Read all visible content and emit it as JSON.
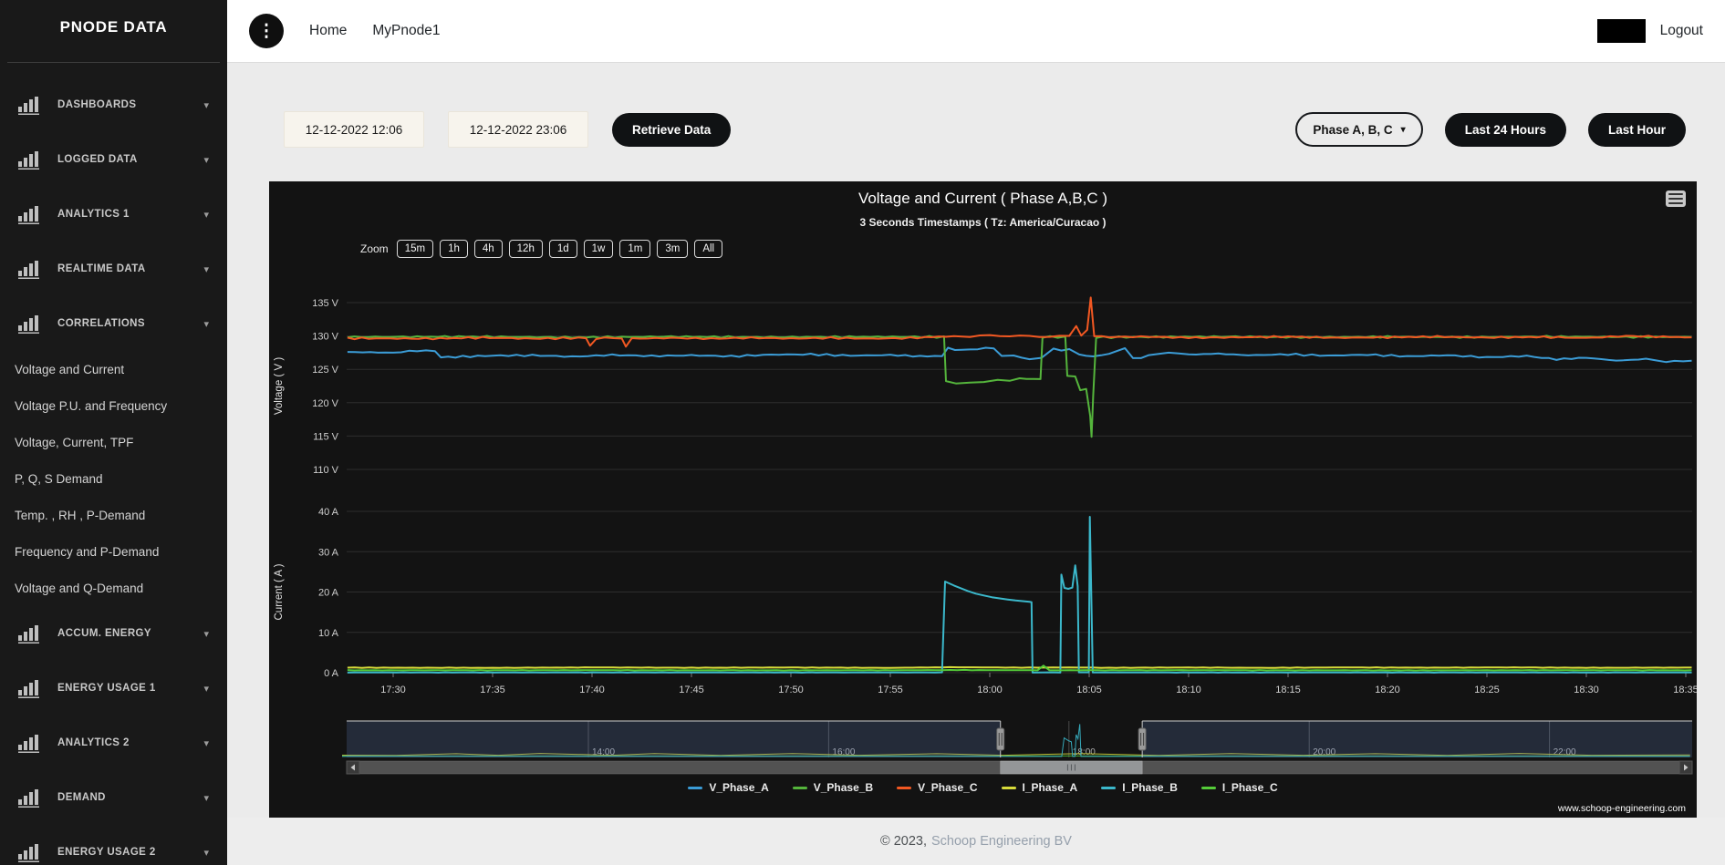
{
  "sidebar": {
    "title": "PNODE DATA",
    "groups": [
      {
        "label": "DASHBOARDS"
      },
      {
        "label": "LOGGED DATA"
      },
      {
        "label": "ANALYTICS 1"
      },
      {
        "label": "REALTIME DATA"
      },
      {
        "label": "CORRELATIONS",
        "expanded": true,
        "children": [
          "Voltage and Current",
          "Voltage P.U. and Frequency",
          "Voltage, Current, TPF",
          "P, Q, S Demand",
          "Temp. , RH , P-Demand",
          "Frequency and P-Demand",
          "Voltage and Q-Demand"
        ]
      },
      {
        "label": "ACCUM. ENERGY"
      },
      {
        "label": "ENERGY USAGE 1"
      },
      {
        "label": "ANALYTICS 2"
      },
      {
        "label": "DEMAND"
      },
      {
        "label": "ENERGY USAGE 2"
      }
    ]
  },
  "navbar": {
    "links": [
      {
        "label": "Home"
      },
      {
        "label": "MyPnode1"
      }
    ],
    "logout": "Logout"
  },
  "toolbar": {
    "date_from": "12-12-2022 12:06",
    "date_to": "12-12-2022 23:06",
    "retrieve": "Retrieve Data",
    "phase": "Phase A, B, C",
    "last24": "Last 24 Hours",
    "lasthour": "Last Hour"
  },
  "footer": {
    "copyright": "© 2023,",
    "company": "Schoop Engineering BV"
  },
  "chart_data": {
    "type": "line",
    "title": "Voltage and Current ( Phase A,B,C )",
    "subtitle": "3 Seconds Timestamps ( Tz: America/Curacao )",
    "watermark": "www.schoop-engineering.com",
    "zoom_label": "Zoom",
    "zoom_buttons": [
      "15m",
      "1h",
      "4h",
      "12h",
      "1d",
      "1w",
      "1m",
      "3m",
      "All"
    ],
    "x_ticks": [
      "17:30",
      "17:35",
      "17:40",
      "17:45",
      "17:50",
      "17:55",
      "18:00",
      "18:05",
      "18:10",
      "18:15",
      "18:20",
      "18:25",
      "18:30",
      "18:35"
    ],
    "panes": [
      {
        "name": "voltage",
        "axis_title": "Voltage ( V )",
        "unit": "V",
        "ticks": [
          135,
          130,
          125,
          120,
          115,
          110
        ],
        "y_min": 110,
        "y_max": 135,
        "grid": true
      },
      {
        "name": "current",
        "axis_title": "Current ( A )",
        "unit": "A",
        "ticks": [
          40,
          30,
          20,
          10,
          0
        ],
        "y_min": 0,
        "y_max": 40,
        "grid": true
      }
    ],
    "series": [
      {
        "name": "V_Phase_A",
        "pane": "voltage",
        "color": "#3B9CD6",
        "points": [
          [
            -2.3,
            127.6
          ],
          [
            0,
            127.5
          ],
          [
            1.2,
            127.8
          ],
          [
            2.1,
            127.7
          ],
          [
            2.4,
            126.8
          ],
          [
            3.5,
            126.9
          ],
          [
            5,
            127.05
          ],
          [
            7,
            127.1
          ],
          [
            9,
            126.9
          ],
          [
            11,
            127.15
          ],
          [
            13,
            127.0
          ],
          [
            15,
            127.1
          ],
          [
            17,
            126.95
          ],
          [
            19,
            127.2
          ],
          [
            21,
            127.25
          ],
          [
            23,
            127.05
          ],
          [
            25,
            127.15
          ],
          [
            26.5,
            126.95
          ],
          [
            27.6,
            127.0
          ],
          [
            27.9,
            128.1
          ],
          [
            28.6,
            127.9
          ],
          [
            29.4,
            128.05
          ],
          [
            30.2,
            128.25
          ],
          [
            30.6,
            126.9
          ],
          [
            31.2,
            127.05
          ],
          [
            32.0,
            126.5
          ],
          [
            32.6,
            126.65
          ],
          [
            33.2,
            128.0
          ],
          [
            34.0,
            127.9
          ],
          [
            34.5,
            127.15
          ],
          [
            35.2,
            126.95
          ],
          [
            36.0,
            127.3
          ],
          [
            36.8,
            128.2
          ],
          [
            37.2,
            126.6
          ],
          [
            38,
            127.0
          ],
          [
            39,
            127.55
          ],
          [
            40,
            127.2
          ],
          [
            41.5,
            127.35
          ],
          [
            43,
            127.1
          ],
          [
            45,
            127.25
          ],
          [
            47,
            127.05
          ],
          [
            49,
            127.2
          ],
          [
            51,
            126.95
          ],
          [
            53,
            127.1
          ],
          [
            55,
            126.8
          ],
          [
            57,
            127.0
          ],
          [
            58.5,
            126.5
          ],
          [
            60,
            126.75
          ],
          [
            61.5,
            126.3
          ],
          [
            63,
            126.55
          ],
          [
            64,
            126.15
          ],
          [
            65.3,
            126.3
          ]
        ]
      },
      {
        "name": "V_Phase_B",
        "pane": "voltage",
        "color": "#55B53C",
        "points": [
          [
            -2.3,
            129.85
          ],
          [
            4,
            129.9
          ],
          [
            9,
            129.8
          ],
          [
            14,
            129.9
          ],
          [
            19,
            129.82
          ],
          [
            24,
            129.88
          ],
          [
            27.7,
            129.85
          ],
          [
            27.8,
            123.2
          ],
          [
            28.3,
            122.75
          ],
          [
            29.0,
            122.95
          ],
          [
            29.7,
            123.05
          ],
          [
            30.4,
            123.3
          ],
          [
            31.0,
            123.2
          ],
          [
            31.5,
            123.65
          ],
          [
            32.2,
            123.55
          ],
          [
            32.55,
            123.5
          ],
          [
            32.65,
            129.85
          ],
          [
            33.8,
            129.85
          ],
          [
            33.9,
            124.0
          ],
          [
            34.3,
            123.9
          ],
          [
            34.55,
            121.9
          ],
          [
            34.85,
            122.1
          ],
          [
            35.05,
            118.0
          ],
          [
            35.12,
            114.8
          ],
          [
            35.2,
            121.0
          ],
          [
            35.35,
            129.8
          ],
          [
            38,
            129.85
          ],
          [
            42,
            129.9
          ],
          [
            46,
            129.8
          ],
          [
            50,
            129.88
          ],
          [
            54,
            129.82
          ],
          [
            58,
            129.9
          ],
          [
            62,
            129.85
          ],
          [
            65.3,
            129.85
          ]
        ]
      },
      {
        "name": "V_Phase_C",
        "pane": "voltage",
        "color": "#F25822",
        "points": [
          [
            -2.3,
            129.65
          ],
          [
            2,
            129.6
          ],
          [
            4.5,
            129.75
          ],
          [
            7,
            129.6
          ],
          [
            9.7,
            129.7
          ],
          [
            9.9,
            128.45
          ],
          [
            10.2,
            129.65
          ],
          [
            11.5,
            129.7
          ],
          [
            11.7,
            128.35
          ],
          [
            12.0,
            129.6
          ],
          [
            14,
            129.7
          ],
          [
            16,
            129.6
          ],
          [
            18,
            129.72
          ],
          [
            20,
            129.62
          ],
          [
            22,
            129.7
          ],
          [
            24,
            129.6
          ],
          [
            26,
            129.68
          ],
          [
            27.8,
            129.95
          ],
          [
            29,
            129.9
          ],
          [
            30,
            130.05
          ],
          [
            31,
            129.95
          ],
          [
            32,
            130.05
          ],
          [
            33,
            129.9
          ],
          [
            34.0,
            129.98
          ],
          [
            34.35,
            131.55
          ],
          [
            34.6,
            130.15
          ],
          [
            34.9,
            130.9
          ],
          [
            35.08,
            135.8
          ],
          [
            35.25,
            130.0
          ],
          [
            36,
            129.85
          ],
          [
            38,
            129.9
          ],
          [
            40,
            129.72
          ],
          [
            42.5,
            129.8
          ],
          [
            45,
            129.9
          ],
          [
            47.5,
            129.72
          ],
          [
            50,
            129.8
          ],
          [
            52.5,
            129.9
          ],
          [
            55,
            129.75
          ],
          [
            57.5,
            129.85
          ],
          [
            60,
            129.7
          ],
          [
            62,
            130.0
          ],
          [
            63.5,
            129.9
          ],
          [
            65.3,
            129.8
          ]
        ]
      },
      {
        "name": "I_Phase_A",
        "pane": "current",
        "color": "#D7DB3A",
        "points": [
          [
            -2.3,
            1.25
          ],
          [
            5,
            1.2
          ],
          [
            10,
            1.3
          ],
          [
            15,
            1.22
          ],
          [
            20,
            1.28
          ],
          [
            25,
            1.2
          ],
          [
            28,
            1.35
          ],
          [
            30,
            1.3
          ],
          [
            32,
            1.25
          ],
          [
            34,
            1.3
          ],
          [
            36,
            1.22
          ],
          [
            40,
            1.28
          ],
          [
            44,
            1.2
          ],
          [
            48,
            1.3
          ],
          [
            52,
            1.24
          ],
          [
            56,
            1.3
          ],
          [
            60,
            1.22
          ],
          [
            65.3,
            1.26
          ]
        ]
      },
      {
        "name": "I_Phase_B",
        "pane": "current",
        "color": "#3BB8CB",
        "points": [
          [
            -2.3,
            0.05
          ],
          [
            27.6,
            0.05
          ],
          [
            27.75,
            22.6
          ],
          [
            28.2,
            21.6
          ],
          [
            28.9,
            20.2
          ],
          [
            29.7,
            19.1
          ],
          [
            30.5,
            18.4
          ],
          [
            31.3,
            17.9
          ],
          [
            32.0,
            17.6
          ],
          [
            32.1,
            17.5
          ],
          [
            32.15,
            0.05
          ],
          [
            33.55,
            0.05
          ],
          [
            33.6,
            24.3
          ],
          [
            33.75,
            21.0
          ],
          [
            33.95,
            20.8
          ],
          [
            34.15,
            21.1
          ],
          [
            34.3,
            26.6
          ],
          [
            34.42,
            21.4
          ],
          [
            34.48,
            0.05
          ],
          [
            34.98,
            0.05
          ],
          [
            35.03,
            38.6
          ],
          [
            35.18,
            0.05
          ],
          [
            65.3,
            0.05
          ]
        ]
      },
      {
        "name": "I_Phase_C",
        "pane": "current",
        "color": "#55CC39",
        "points": [
          [
            -2.3,
            0.6
          ],
          [
            10,
            0.62
          ],
          [
            20,
            0.58
          ],
          [
            28,
            0.65
          ],
          [
            32.4,
            0.6
          ],
          [
            32.7,
            1.7
          ],
          [
            33.0,
            0.6
          ],
          [
            40,
            0.62
          ],
          [
            50,
            0.58
          ],
          [
            60,
            0.62
          ],
          [
            65.3,
            0.6
          ]
        ]
      }
    ],
    "x_range_minutes": [
      -2.3,
      65.3
    ],
    "navigator": {
      "labels": [
        {
          "text": "14:00",
          "hour": 14
        },
        {
          "text": "16:00",
          "hour": 16
        },
        {
          "text": "18:00",
          "hour": 18
        },
        {
          "text": "20:00",
          "hour": 20
        },
        {
          "text": "22:00",
          "hour": 22
        }
      ],
      "hour_range": [
        11.95,
        23.17
      ],
      "selected_hours": [
        17.43,
        18.61
      ],
      "series": [
        {
          "name": "I_Phase_A",
          "color": "#b9bd35",
          "points": [
            [
              11.95,
              1.6
            ],
            [
              12.4,
              1.4
            ],
            [
              12.9,
              3.4
            ],
            [
              13.25,
              1.5
            ],
            [
              13.6,
              3.7
            ],
            [
              14.2,
              1.5
            ],
            [
              14.55,
              3.5
            ],
            [
              15.1,
              1.4
            ],
            [
              15.7,
              3.6
            ],
            [
              16.25,
              1.5
            ],
            [
              16.9,
              3.3
            ],
            [
              17.45,
              1.5
            ],
            [
              18.1,
              3.5
            ],
            [
              18.75,
              1.4
            ],
            [
              19.35,
              3.6
            ],
            [
              19.95,
              1.5
            ],
            [
              20.55,
              3.4
            ],
            [
              21.15,
              1.4
            ],
            [
              21.75,
              3.7
            ],
            [
              22.35,
              1.5
            ],
            [
              23.17,
              1.9
            ]
          ]
        },
        {
          "name": "I_Phase_C",
          "color": "#4aae31",
          "points": [
            [
              11.95,
              0.7
            ],
            [
              23.17,
              0.7
            ]
          ]
        },
        {
          "name": "I_Phase_B",
          "color": "#36a9ba",
          "points": [
            [
              11.95,
              0.12
            ],
            [
              17.94,
              0.12
            ],
            [
              17.96,
              22
            ],
            [
              18.0,
              18.5
            ],
            [
              18.02,
              17.5
            ],
            [
              18.03,
              0.12
            ],
            [
              18.05,
              0.12
            ],
            [
              18.06,
              26
            ],
            [
              18.075,
              21
            ],
            [
              18.09,
              38.5
            ],
            [
              18.1,
              0.12
            ],
            [
              23.17,
              0.12
            ]
          ]
        }
      ]
    }
  }
}
